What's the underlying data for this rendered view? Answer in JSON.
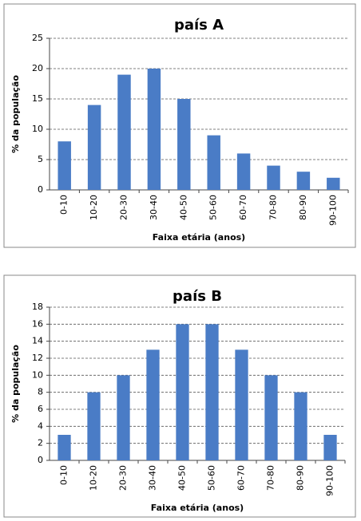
{
  "chart_data": [
    {
      "type": "bar",
      "title": "país A",
      "y_label": "% da população",
      "x_label": "Faixa etária (anos)",
      "categories": [
        "0-10",
        "10-20",
        "20-30",
        "30-40",
        "40-50",
        "50-60",
        "60-70",
        "70-80",
        "80-90",
        "90-100"
      ],
      "values": [
        8,
        14,
        19,
        20,
        15,
        9,
        6,
        4,
        3,
        2
      ],
      "color": "#4a7cc6",
      "ylim": [
        0,
        25
      ],
      "yticks": [
        0,
        5,
        10,
        15,
        20,
        25
      ],
      "grid": true
    },
    {
      "type": "bar",
      "title": "país B",
      "y_label": "% da população",
      "x_label": "Faixa etária (anos)",
      "categories": [
        "0-10",
        "10-20",
        "20-30",
        "30-40",
        "40-50",
        "50-60",
        "60-70",
        "70-80",
        "80-90",
        "90-100"
      ],
      "values": [
        3,
        8,
        10,
        13,
        16,
        16,
        13,
        10,
        8,
        3
      ],
      "color": "#4a7cc6",
      "ylim": [
        0,
        18
      ],
      "yticks": [
        0,
        2,
        4,
        6,
        8,
        10,
        12,
        14,
        16,
        18
      ],
      "grid": true
    }
  ]
}
